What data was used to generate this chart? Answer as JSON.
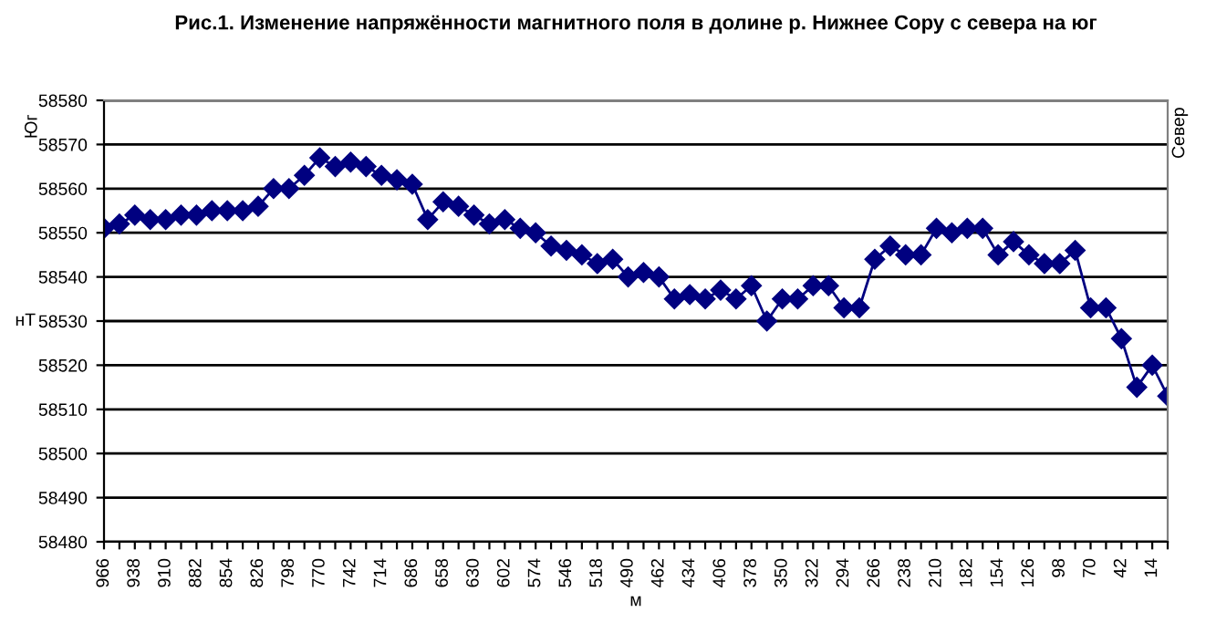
{
  "chart_data": {
    "type": "line",
    "title": "Рис.1. Изменение напряжённости магнитного поля в долине р. Нижнее Сору с севера на юг",
    "xlabel": "м",
    "ylabel": "нТ",
    "annotations": [
      "Юг",
      "Север"
    ],
    "categories": [
      "966",
      null,
      "938",
      null,
      "910",
      null,
      "882",
      null,
      "854",
      null,
      "826",
      null,
      "798",
      null,
      "770",
      null,
      "742",
      null,
      "714",
      null,
      "686",
      null,
      "658",
      null,
      "630",
      null,
      "602",
      null,
      "574",
      null,
      "546",
      null,
      "518",
      null,
      "490",
      null,
      "462",
      null,
      "434",
      null,
      "406",
      null,
      "378",
      null,
      "350",
      null,
      "322",
      null,
      "294",
      null,
      "266",
      null,
      "238",
      null,
      "210",
      null,
      "182",
      null,
      "154",
      null,
      "126",
      null,
      "98",
      null,
      "70",
      null,
      "42",
      null,
      "14",
      null
    ],
    "series": [
      {
        "color": "#000080",
        "values": [
          58551,
          58552,
          58554,
          58553,
          58553,
          58554,
          58554,
          58555,
          58555,
          58555,
          58556,
          58560,
          58560,
          58563,
          58567,
          58565,
          58566,
          58565,
          58563,
          58562,
          58561,
          58553,
          58557,
          58556,
          58554,
          58552,
          58553,
          58551,
          58550,
          58547,
          58546,
          58545,
          58543,
          58544,
          58540,
          58541,
          58540,
          58535,
          58536,
          58535,
          58537,
          58535,
          58538,
          58530,
          58535,
          58535,
          58538,
          58538,
          58533,
          58533,
          58544,
          58547,
          58545,
          58545,
          58551,
          58550,
          58551,
          58551,
          58545,
          58548,
          58545,
          58543,
          58543,
          58546,
          58533,
          58533,
          58526,
          58515,
          58520,
          58513
        ]
      }
    ],
    "ylim": [
      58480,
      58580
    ],
    "yticks": [
      58480,
      58490,
      58500,
      58510,
      58520,
      58530,
      58540,
      58550,
      58560,
      58570,
      58580
    ],
    "grid": "y",
    "marker": "diamond",
    "line_style": "solid",
    "legend": false
  }
}
